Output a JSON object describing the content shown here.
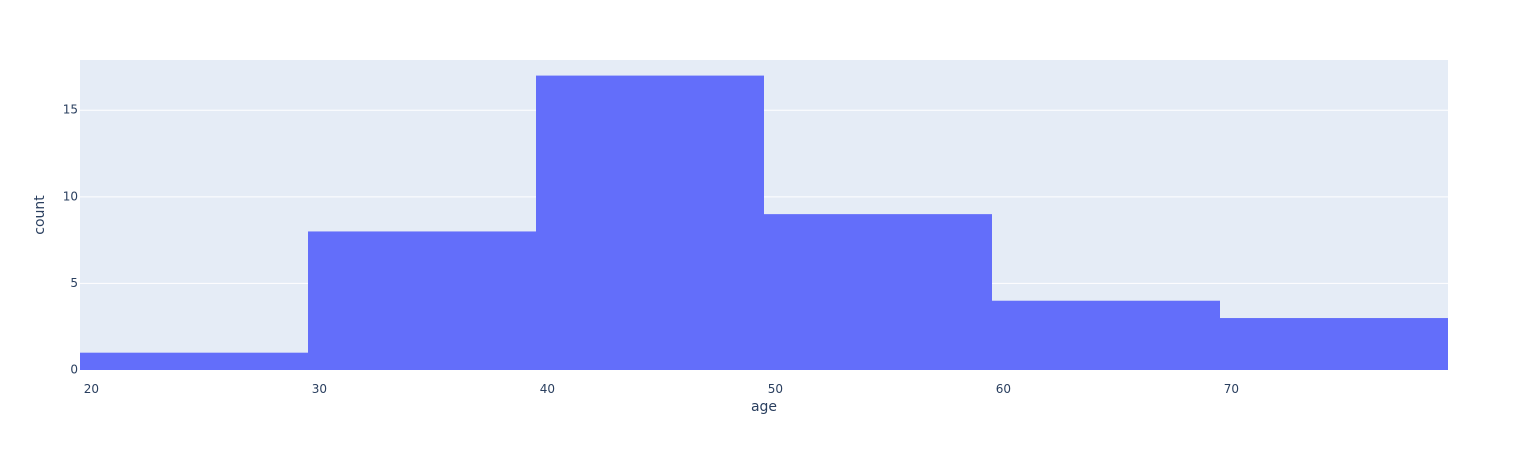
{
  "chart_data": {
    "type": "bar",
    "subtype": "histogram",
    "title": "",
    "xlabel": "age",
    "ylabel": "count",
    "bins": [
      {
        "start": 19.5,
        "end": 29.5,
        "count": 1
      },
      {
        "start": 29.5,
        "end": 39.5,
        "count": 8
      },
      {
        "start": 39.5,
        "end": 49.5,
        "count": 17
      },
      {
        "start": 49.5,
        "end": 59.5,
        "count": 9
      },
      {
        "start": 59.5,
        "end": 69.5,
        "count": 4
      },
      {
        "start": 69.5,
        "end": 79.5,
        "count": 3
      }
    ],
    "xlim": [
      19.5,
      79.5
    ],
    "ylim": [
      0,
      17.9
    ],
    "x_ticks": [
      20,
      30,
      40,
      50,
      60,
      70
    ],
    "x_tick_labels": [
      "20",
      "30",
      "40",
      "50",
      "60",
      "70"
    ],
    "y_ticks": [
      0,
      5,
      10,
      15
    ],
    "y_tick_labels": [
      "0",
      "5",
      "10",
      "15"
    ],
    "grid": true,
    "legend": "none"
  },
  "colors": {
    "bar": "#636efa",
    "plot_background": "#e5ecf6",
    "gridline": "#ffffff",
    "text": "#2a3f5f"
  }
}
